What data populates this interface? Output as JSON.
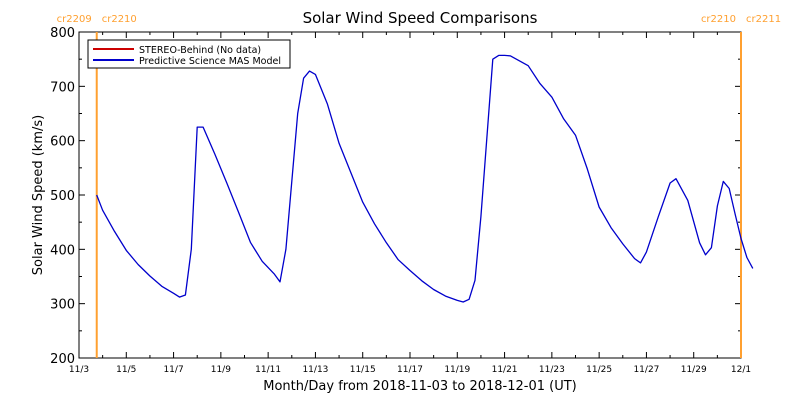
{
  "chart_data": {
    "type": "line",
    "title": "Solar Wind Speed Comparisons",
    "xlabel": "Month/Day from 2018-11-03 to 2018-12-01 (UT)",
    "ylabel": "Solar Wind Speed (km/s)",
    "xlim": [
      "2018-11-03",
      "2018-12-01"
    ],
    "ylim": [
      200,
      800
    ],
    "x_ticks": [
      {
        "date": "2018-11-03",
        "label": "11/3"
      },
      {
        "date": "2018-11-05",
        "label": "11/5"
      },
      {
        "date": "2018-11-07",
        "label": "11/7"
      },
      {
        "date": "2018-11-09",
        "label": "11/9"
      },
      {
        "date": "2018-11-11",
        "label": "11/11"
      },
      {
        "date": "2018-11-13",
        "label": "11/13"
      },
      {
        "date": "2018-11-15",
        "label": "11/15"
      },
      {
        "date": "2018-11-17",
        "label": "11/17"
      },
      {
        "date": "2018-11-19",
        "label": "11/19"
      },
      {
        "date": "2018-11-21",
        "label": "11/21"
      },
      {
        "date": "2018-11-23",
        "label": "11/23"
      },
      {
        "date": "2018-11-25",
        "label": "11/25"
      },
      {
        "date": "2018-11-27",
        "label": "11/27"
      },
      {
        "date": "2018-11-29",
        "label": "11/29"
      },
      {
        "date": "2018-12-01",
        "label": "12/1"
      }
    ],
    "y_ticks": [
      200,
      300,
      400,
      500,
      600,
      700,
      800
    ],
    "legend_position": "top-left",
    "series": [
      {
        "name": "STEREO-Behind (No data)",
        "color": "#cc0000",
        "points": []
      },
      {
        "name": "Predictive Science MAS Model",
        "color": "#0000cc",
        "points": [
          [
            "2018-11-03T18:00",
            500
          ],
          [
            "2018-11-04T00:00",
            472
          ],
          [
            "2018-11-04T12:00",
            433
          ],
          [
            "2018-11-05T00:00",
            398
          ],
          [
            "2018-11-05T12:00",
            372
          ],
          [
            "2018-11-06T00:00",
            351
          ],
          [
            "2018-11-06T12:00",
            332
          ],
          [
            "2018-11-07T00:00",
            319
          ],
          [
            "2018-11-07T06:00",
            312
          ],
          [
            "2018-11-07T12:00",
            316
          ],
          [
            "2018-11-07T18:00",
            400
          ],
          [
            "2018-11-08T00:00",
            625
          ],
          [
            "2018-11-08T06:00",
            625
          ],
          [
            "2018-11-08T18:00",
            575
          ],
          [
            "2018-11-09T06:00",
            522
          ],
          [
            "2018-11-09T18:00",
            468
          ],
          [
            "2018-11-10T06:00",
            413
          ],
          [
            "2018-11-10T18:00",
            378
          ],
          [
            "2018-11-11T06:00",
            355
          ],
          [
            "2018-11-11T12:00",
            340
          ],
          [
            "2018-11-11T18:00",
            400
          ],
          [
            "2018-11-12T06:00",
            650
          ],
          [
            "2018-11-12T12:00",
            715
          ],
          [
            "2018-11-12T18:00",
            728
          ],
          [
            "2018-11-13T00:00",
            722
          ],
          [
            "2018-11-13T12:00",
            668
          ],
          [
            "2018-11-14T00:00",
            595
          ],
          [
            "2018-11-14T12:00",
            541
          ],
          [
            "2018-11-15T00:00",
            487
          ],
          [
            "2018-11-15T12:00",
            447
          ],
          [
            "2018-11-16T00:00",
            412
          ],
          [
            "2018-11-16T12:00",
            381
          ],
          [
            "2018-11-17T00:00",
            361
          ],
          [
            "2018-11-17T12:00",
            342
          ],
          [
            "2018-11-18T00:00",
            326
          ],
          [
            "2018-11-18T12:00",
            314
          ],
          [
            "2018-11-19T00:00",
            306
          ],
          [
            "2018-11-19T06:00",
            303
          ],
          [
            "2018-11-19T12:00",
            308
          ],
          [
            "2018-11-19T18:00",
            343
          ],
          [
            "2018-11-20T00:00",
            460
          ],
          [
            "2018-11-20T12:00",
            750
          ],
          [
            "2018-11-20T18:00",
            757
          ],
          [
            "2018-11-21T00:00",
            757
          ],
          [
            "2018-11-21T06:00",
            756
          ],
          [
            "2018-11-21T12:00",
            750
          ],
          [
            "2018-11-22T00:00",
            738
          ],
          [
            "2018-11-22T12:00",
            705
          ],
          [
            "2018-11-23T00:00",
            680
          ],
          [
            "2018-11-23T12:00",
            640
          ],
          [
            "2018-11-24T00:00",
            610
          ],
          [
            "2018-11-24T12:00",
            548
          ],
          [
            "2018-11-25T00:00",
            478
          ],
          [
            "2018-11-25T12:00",
            440
          ],
          [
            "2018-11-26T00:00",
            410
          ],
          [
            "2018-11-26T12:00",
            383
          ],
          [
            "2018-11-26T18:00",
            375
          ],
          [
            "2018-11-27T00:00",
            395
          ],
          [
            "2018-11-27T12:00",
            460
          ],
          [
            "2018-11-28T00:00",
            522
          ],
          [
            "2018-11-28T06:00",
            530
          ],
          [
            "2018-11-28T18:00",
            490
          ],
          [
            "2018-11-29T06:00",
            412
          ],
          [
            "2018-11-29T12:00",
            390
          ],
          [
            "2018-11-29T18:00",
            403
          ],
          [
            "2018-11-30T00:00",
            480
          ],
          [
            "2018-11-30T06:00",
            525
          ],
          [
            "2018-11-30T12:00",
            512
          ],
          [
            "2018-11-30T18:00",
            465
          ],
          [
            "2018-12-01T00:00",
            420
          ],
          [
            "2018-12-01T06:00",
            385
          ],
          [
            "2018-12-01T12:00",
            365
          ]
        ]
      }
    ],
    "vertical_markers": [
      {
        "date": "2018-11-03T18:00",
        "labels": [
          "cr2209",
          "cr2210"
        ],
        "color": "#ffa030"
      },
      {
        "date": "2018-12-01T00:00",
        "labels": [
          "cr2210",
          "cr2211"
        ],
        "color": "#ffa030"
      }
    ]
  }
}
